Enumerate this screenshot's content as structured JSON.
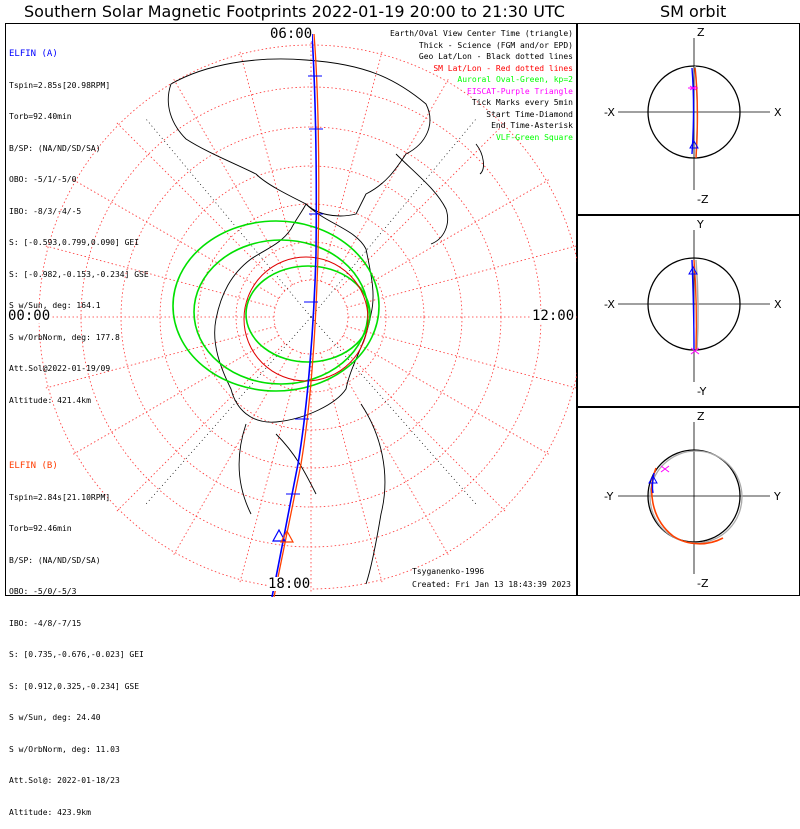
{
  "header": {
    "main_title": "Southern Solar Magnetic Footprints 2022-01-19 20:00 to 21:30 UTC",
    "orbit_title": "SM orbit"
  },
  "elfin_a": {
    "name": "ELFIN (A)",
    "color": "#0000ff",
    "lines": [
      "Tspin=2.85s[20.98RPM]",
      "Torb=92.40min",
      "B/SP: (NA/ND/SD/SA)",
      "OBO: -5/1/-5/0",
      "IBO: -8/3/-4/-5",
      "S: [-0.593,0.799,0.090] GEI",
      "S: [-0.982,-0.153,-0.234] GSE",
      "S w/Sun, deg: 164.1",
      "S w/OrbNorm, deg: 177.8",
      "Att.Sol@2022-01-19/09",
      "Altitude: 421.4km"
    ]
  },
  "elfin_b": {
    "name": "ELFIN (B)",
    "color": "#ff3b00",
    "lines": [
      "Tspin=2.84s[21.10RPM]",
      "Torb=92.46min",
      "B/SP: (NA/ND/SD/SA)",
      "OBO: -5/0/-5/3",
      "IBO: -4/8/-7/15",
      "S: [0.735,-0.676,-0.023] GEI",
      "S: [0.912,0.325,-0.234] GSE",
      "S w/Sun, deg: 24.40",
      "S w/OrbNorm, deg: 11.03",
      "Att.Sol@: 2022-01-18/23",
      "Altitude: 423.9km"
    ]
  },
  "legend": [
    {
      "text": "Earth/Oval View Center Time (triangle)",
      "color": "#000000"
    },
    {
      "text": "Thick - Science (FGM and/or EPD)",
      "color": "#000000"
    },
    {
      "text": "Geo Lat/Lon - Black dotted lines",
      "color": "#000000"
    },
    {
      "text": "SM Lat/Lon - Red dotted lines",
      "color": "#ff0000"
    },
    {
      "text": "Auroral Oval-Green, kp=2",
      "color": "#00ff00"
    },
    {
      "text": "EISCAT-Purple Triangle",
      "color": "#ff00ff"
    },
    {
      "text": "Tick Marks every 5min",
      "color": "#000000"
    },
    {
      "text": "Start Time-Diamond",
      "color": "#000000"
    },
    {
      "text": "End Time-Asterisk",
      "color": "#000000"
    },
    {
      "text": "VLF-Green Square",
      "color": "#00ff00"
    }
  ],
  "hour_labels": {
    "top": "06:00",
    "left": "00:00",
    "right": "12:00",
    "bottom": "18:00"
  },
  "credits": {
    "author": "Tsyganenko-1996",
    "created": "Created: Fri Jan 13 18:43:39 2023"
  },
  "orbit_panels": [
    {
      "top": "Z",
      "bottom": "-Z",
      "left": "-X",
      "right": "X"
    },
    {
      "top": "Y",
      "bottom": "-Y",
      "left": "-X",
      "right": "X"
    },
    {
      "top": "Z",
      "bottom": "-Z",
      "left": "-Y",
      "right": "Y"
    }
  ]
}
